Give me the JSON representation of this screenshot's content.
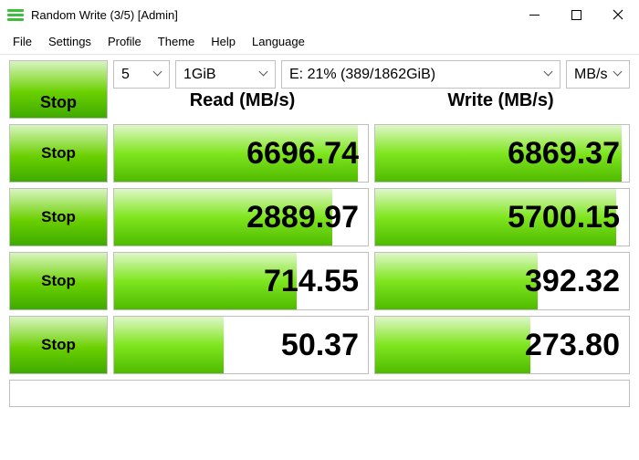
{
  "window": {
    "title": "Random Write (3/5) [Admin]"
  },
  "menu": {
    "file": "File",
    "settings": "Settings",
    "profile": "Profile",
    "theme": "Theme",
    "help": "Help",
    "language": "Language"
  },
  "controls": {
    "stop_main": "Stop",
    "runs": "5",
    "size": "1GiB",
    "drive": "E: 21% (389/1862GiB)",
    "unit": "MB/s"
  },
  "headers": {
    "read": "Read (MB/s)",
    "write": "Write (MB/s)"
  },
  "rows": [
    {
      "label": "Stop",
      "read": "6696.74",
      "read_pct": 96,
      "write": "6869.37",
      "write_pct": 97
    },
    {
      "label": "Stop",
      "read": "2889.97",
      "read_pct": 86,
      "write": "5700.15",
      "write_pct": 95
    },
    {
      "label": "Stop",
      "read": "714.55",
      "read_pct": 72,
      "write": "392.32",
      "write_pct": 64
    },
    {
      "label": "Stop",
      "read": "50.37",
      "read_pct": 43,
      "write": "273.80",
      "write_pct": 61
    }
  ],
  "colors": {
    "green_grad_top": "#d9f5c0",
    "green_grad_mid": "#6ad000",
    "green_grad_bot": "#3faa00",
    "border": "#bfbfbf"
  }
}
